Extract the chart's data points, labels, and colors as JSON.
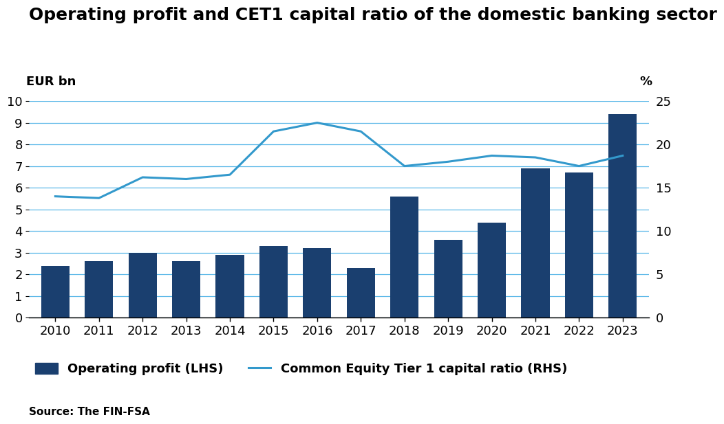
{
  "title": "Operating profit and CET1 capital ratio of the domestic banking sector",
  "ylabel_left": "EUR bn",
  "ylabel_right": "%",
  "source": "Source: The FIN-FSA",
  "years": [
    2010,
    2011,
    2012,
    2013,
    2014,
    2015,
    2016,
    2017,
    2018,
    2019,
    2020,
    2021,
    2022,
    2023
  ],
  "bar_values": [
    2.4,
    2.6,
    3.0,
    2.6,
    2.9,
    3.3,
    3.2,
    2.3,
    5.6,
    3.6,
    4.4,
    6.9,
    6.7,
    9.4
  ],
  "line_values": [
    14.0,
    13.8,
    16.2,
    16.0,
    16.5,
    21.5,
    22.5,
    21.5,
    17.5,
    18.0,
    18.7,
    18.5,
    17.5,
    18.7
  ],
  "bar_color": "#1a3f6f",
  "line_color": "#3399cc",
  "ylim_left": [
    0,
    10
  ],
  "ylim_right": [
    0,
    25
  ],
  "yticks_left": [
    0,
    1,
    2,
    3,
    4,
    5,
    6,
    7,
    8,
    9,
    10
  ],
  "yticks_right": [
    0,
    5,
    10,
    15,
    20,
    25
  ],
  "background_color": "#ffffff",
  "grid_color": "#5cb8e8",
  "title_fontsize": 18,
  "label_fontsize": 13,
  "tick_fontsize": 13,
  "legend_label_bar": "Operating profit (LHS)",
  "legend_label_line": "Common Equity Tier 1 capital ratio (RHS)"
}
